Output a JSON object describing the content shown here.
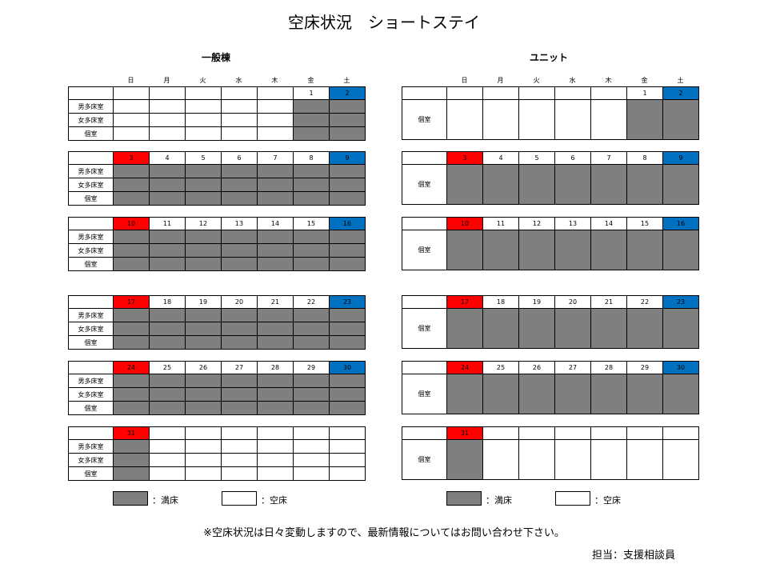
{
  "title": "空床状況　ショートステイ",
  "sections": [
    {
      "title": "一般棟",
      "rows": [
        "男多床室",
        "女多床室",
        "個室"
      ]
    },
    {
      "title": "ユニット",
      "rows": [
        "個室"
      ]
    }
  ],
  "weekdays": [
    "日",
    "月",
    "火",
    "水",
    "木",
    "金",
    "土"
  ],
  "weeks": [
    [
      "",
      "",
      "",
      "",
      "",
      "1",
      "2"
    ],
    [
      "3",
      "4",
      "5",
      "6",
      "7",
      "8",
      "9"
    ],
    [
      "10",
      "11",
      "12",
      "13",
      "14",
      "15",
      "16"
    ],
    [
      "17",
      "18",
      "19",
      "20",
      "21",
      "22",
      "23"
    ],
    [
      "24",
      "25",
      "26",
      "27",
      "28",
      "29",
      "30"
    ],
    [
      "31",
      "",
      "",
      "",
      "",
      "",
      ""
    ]
  ],
  "status": {
    "general": [
      [
        [
          0,
          0,
          0,
          0,
          0,
          1,
          1
        ],
        [
          0,
          0,
          0,
          0,
          0,
          1,
          1
        ],
        [
          0,
          0,
          0,
          0,
          0,
          1,
          1
        ]
      ],
      [
        [
          1,
          1,
          1,
          1,
          1,
          1,
          1
        ],
        [
          1,
          1,
          1,
          1,
          1,
          1,
          1
        ],
        [
          1,
          1,
          1,
          1,
          1,
          1,
          1
        ]
      ],
      [
        [
          1,
          1,
          1,
          1,
          1,
          1,
          1
        ],
        [
          1,
          1,
          1,
          1,
          1,
          1,
          1
        ],
        [
          1,
          1,
          1,
          1,
          1,
          1,
          1
        ]
      ],
      [
        [
          1,
          1,
          1,
          1,
          1,
          1,
          1
        ],
        [
          1,
          1,
          1,
          1,
          1,
          1,
          1
        ],
        [
          1,
          1,
          1,
          1,
          1,
          1,
          1
        ]
      ],
      [
        [
          1,
          1,
          1,
          1,
          1,
          1,
          1
        ],
        [
          1,
          1,
          1,
          1,
          1,
          1,
          1
        ],
        [
          1,
          1,
          1,
          1,
          1,
          1,
          1
        ]
      ],
      [
        [
          1,
          0,
          0,
          0,
          0,
          0,
          0
        ],
        [
          1,
          0,
          0,
          0,
          0,
          0,
          0
        ],
        [
          1,
          0,
          0,
          0,
          0,
          0,
          0
        ]
      ]
    ],
    "unit": [
      [
        [
          0,
          0,
          0,
          0,
          0,
          1,
          1
        ]
      ],
      [
        [
          1,
          1,
          1,
          1,
          1,
          1,
          1
        ]
      ],
      [
        [
          1,
          1,
          1,
          1,
          1,
          1,
          1
        ]
      ],
      [
        [
          1,
          1,
          1,
          1,
          1,
          1,
          1
        ]
      ],
      [
        [
          1,
          1,
          1,
          1,
          1,
          1,
          1
        ]
      ],
      [
        [
          1,
          0,
          0,
          0,
          0,
          0,
          0
        ]
      ]
    ]
  },
  "legend": {
    "full": "：満床",
    "vacant": "：空床"
  },
  "colors": {
    "full": "#7f7f7f",
    "sunday": "#ff0000",
    "saturday": "#0070c0"
  },
  "notice": "※空床状況は日々変動しますので、最新情報についてはお問い合わせ下さい。",
  "contact": "担当：支援相談員"
}
